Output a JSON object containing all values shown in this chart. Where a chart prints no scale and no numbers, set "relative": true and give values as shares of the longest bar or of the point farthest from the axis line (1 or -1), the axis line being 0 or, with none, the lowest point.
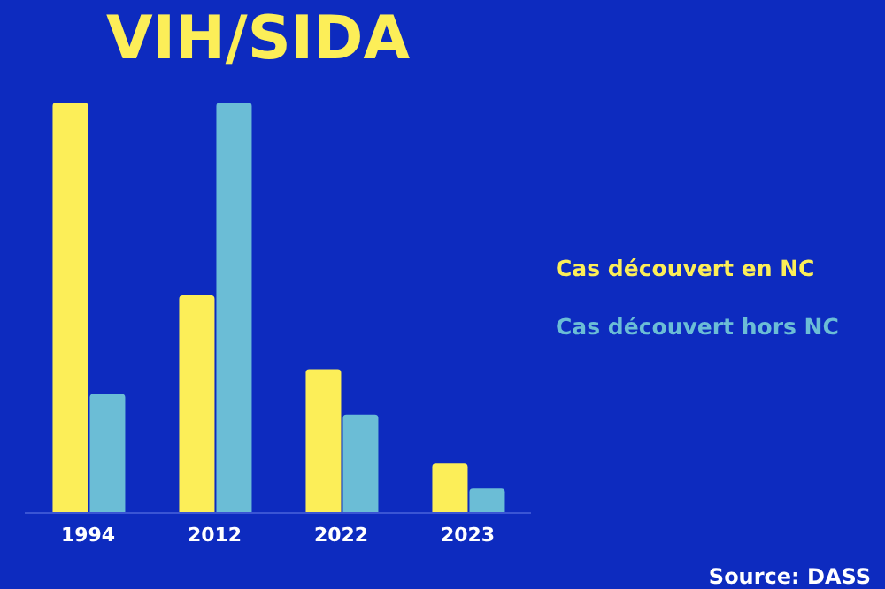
{
  "chart_data": {
    "type": "bar",
    "title": "VIH/SIDA",
    "relative": true,
    "categories": [
      "1994",
      "2012",
      "2022",
      "2023"
    ],
    "series": [
      {
        "name": "Cas découvert en NC",
        "color": "#fcee58",
        "values": [
          1,
          0.53,
          0.35,
          0.12
        ]
      },
      {
        "name": "Cas découvert hors NC",
        "color": "#6bbdd6",
        "values": [
          0.29,
          1,
          0.24,
          0.06
        ]
      }
    ],
    "legend": "right",
    "annotations": [
      "Source: DASS"
    ]
  }
}
